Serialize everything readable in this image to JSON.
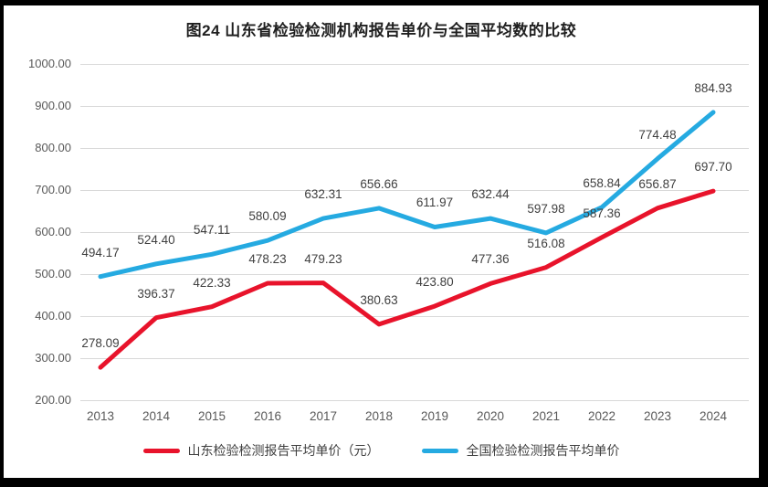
{
  "title": "图24  山东省检验检测机构报告单价与全国平均数的比较",
  "chart_data": {
    "type": "line",
    "title": "图24  山东省检验检测机构报告单价与全国平均数的比较",
    "categories": [
      "2013",
      "2014",
      "2015",
      "2016",
      "2017",
      "2018",
      "2019",
      "2020",
      "2021",
      "2022",
      "2023",
      "2024"
    ],
    "series": [
      {
        "name": "山东检验检测报告平均单价（元）",
        "color": "#e8132b",
        "values": [
          278.09,
          396.37,
          422.33,
          478.23,
          479.23,
          380.63,
          423.8,
          477.36,
          516.08,
          587.36,
          656.87,
          697.7
        ]
      },
      {
        "name": "全国检验检测报告平均单价",
        "color": "#25aae1",
        "values": [
          494.17,
          524.4,
          547.11,
          580.09,
          632.31,
          656.66,
          611.97,
          632.44,
          597.98,
          658.84,
          774.48,
          884.93
        ]
      }
    ],
    "ylim": [
      200,
      1000
    ],
    "ytick_step": 100,
    "ytick_labels": [
      "200.00",
      "300.00",
      "400.00",
      "500.00",
      "600.00",
      "700.00",
      "800.00",
      "900.00",
      "1000.00"
    ],
    "grid": true,
    "data_labels": true,
    "legend_position": "bottom"
  },
  "colors": {
    "frame_border": "#000000",
    "background": "#ffffff",
    "gridline": "#d9d9d9",
    "axis_text": "#595959",
    "data_label_text": "#404040",
    "title_text": "#1f1f1f"
  }
}
